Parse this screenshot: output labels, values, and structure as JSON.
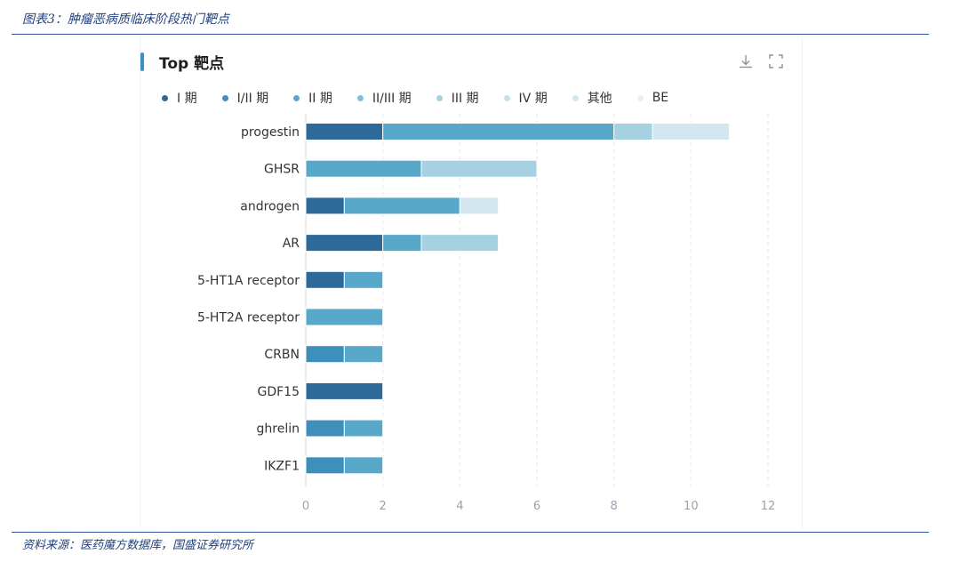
{
  "page": {
    "figure_caption": "图表3：肿瘤恶病质临床阶段热门靶点",
    "source_caption": "资料来源：医药魔方数据库，国盛证券研究所"
  },
  "toolbar": {
    "download_icon": "download-icon",
    "fullscreen_icon": "fullscreen-icon"
  },
  "chart_data": {
    "type": "bar",
    "orientation": "horizontal",
    "stacked": true,
    "title": "Top 靶点",
    "categories": [
      "progestin",
      "GHSR",
      "androgen",
      "AR",
      "5-HT1A receptor",
      "5-HT2A receptor",
      "CRBN",
      "GDF15",
      "ghrelin",
      "IKZF1"
    ],
    "series": [
      {
        "name": "I 期",
        "color": "#2e6a99",
        "values": [
          2,
          0,
          1,
          2,
          1,
          0,
          0,
          2,
          0,
          0
        ]
      },
      {
        "name": "I/II 期",
        "color": "#3f8fbd",
        "values": [
          0,
          0,
          0,
          0,
          0,
          0,
          1,
          0,
          1,
          1
        ]
      },
      {
        "name": "II 期",
        "color": "#58a9c9",
        "values": [
          6,
          3,
          3,
          1,
          1,
          2,
          1,
          0,
          1,
          1
        ]
      },
      {
        "name": "II/III 期",
        "color": "#7cc0da",
        "values": [
          0,
          0,
          0,
          0,
          0,
          0,
          0,
          0,
          0,
          0
        ]
      },
      {
        "name": "III 期",
        "color": "#a6d1e3",
        "values": [
          1,
          3,
          0,
          2,
          0,
          0,
          0,
          0,
          0,
          0
        ]
      },
      {
        "name": "IV 期",
        "color": "#c2dfeb",
        "values": [
          0,
          0,
          0,
          0,
          0,
          0,
          0,
          0,
          0,
          0
        ]
      },
      {
        "name": "其他",
        "color": "#d3e7f1",
        "values": [
          2,
          0,
          1,
          0,
          0,
          0,
          0,
          0,
          0,
          0
        ]
      },
      {
        "name": "BE",
        "color": "#e4f1f7",
        "values": [
          0,
          0,
          0,
          0,
          0,
          0,
          0,
          0,
          0,
          0
        ]
      }
    ],
    "xlim": [
      0,
      12
    ],
    "xticks": [
      0,
      2,
      4,
      6,
      8,
      10,
      12
    ],
    "grid": true,
    "legend_position": "top-left"
  }
}
